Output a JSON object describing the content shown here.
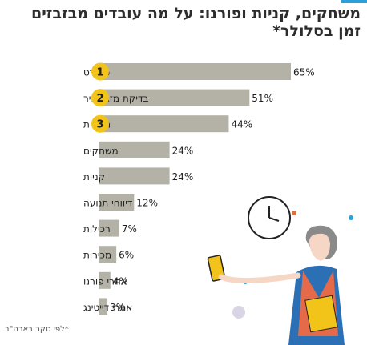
{
  "header": {
    "title_line1": "משחקים, קניות ופורנו: על מה עובדים מבזבזים",
    "title_line2": "זמן בסלולר*"
  },
  "footnote": "*לפי סקר בארה\"ב",
  "colors": {
    "bar": "#b4b2a6",
    "badge": "#f2c318",
    "accent": "#2a9fd8"
  },
  "chart_data": {
    "type": "bar",
    "orientation": "horizontal",
    "categories": [
      "ספורט",
      "בדיקת מזג אוויר",
      "חדשות",
      "משחקים",
      "קניות",
      "דיווחי תנועה",
      "רכילות",
      "מכירות",
      "אתרי פורנו",
      "אתרי דייטינג"
    ],
    "values": [
      65,
      51,
      44,
      24,
      24,
      12,
      7,
      6,
      4,
      3
    ],
    "value_labels": [
      "65%",
      "51%",
      "44%",
      "24%",
      "24%",
      "12%",
      "7%",
      "6%",
      "4%",
      "3%"
    ],
    "ranks": [
      "1",
      "2",
      "3"
    ],
    "xlim": [
      0,
      65
    ]
  }
}
